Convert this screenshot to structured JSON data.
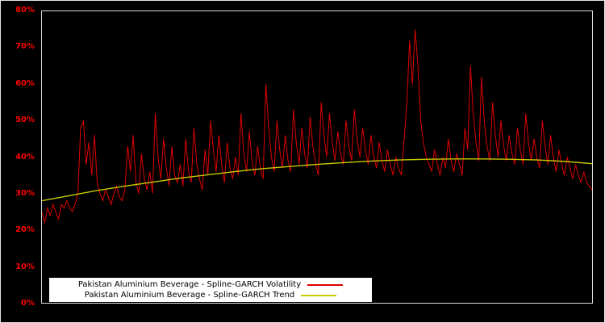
{
  "chart_data": {
    "type": "line",
    "title": "",
    "xlabel": "",
    "ylabel": "",
    "ylim": [
      0,
      80
    ],
    "grid": false,
    "background_color": "#000000",
    "axis_frame_color": "#d9d9d9",
    "tick_label_color": "#ff0000",
    "legend_position": "bottom-inside",
    "legend_background": "#ffffff",
    "yticks": [
      "0%",
      "10%",
      "20%",
      "30%",
      "40%",
      "50%",
      "60%",
      "70%",
      "80%"
    ],
    "series": [
      {
        "name": "volatility",
        "label": "Pakistan Aluminium Beverage - Spline-GARCH Volatility",
        "color": "#dd0000",
        "unit": "%",
        "values": [
          25,
          22,
          26,
          24,
          27,
          25,
          23,
          27,
          26,
          28,
          26,
          25,
          27,
          30,
          48,
          50,
          38,
          44,
          35,
          46,
          33,
          30,
          28,
          31,
          29,
          27,
          30,
          32,
          29,
          28,
          31,
          43,
          36,
          46,
          33,
          30,
          41,
          34,
          31,
          36,
          30,
          52,
          40,
          34,
          45,
          37,
          32,
          43,
          35,
          33,
          38,
          32,
          45,
          36,
          33,
          48,
          38,
          34,
          31,
          42,
          35,
          50,
          42,
          36,
          46,
          38,
          33,
          44,
          37,
          34,
          40,
          35,
          52,
          41,
          36,
          47,
          39,
          35,
          43,
          37,
          34,
          60,
          48,
          40,
          36,
          50,
          42,
          37,
          46,
          39,
          36,
          53,
          44,
          38,
          48,
          41,
          37,
          51,
          43,
          38,
          35,
          55,
          46,
          40,
          52,
          44,
          39,
          47,
          41,
          38,
          50,
          43,
          39,
          53,
          45,
          40,
          48,
          42,
          38,
          46,
          40,
          37,
          44,
          39,
          36,
          42,
          38,
          35,
          40,
          37,
          35,
          45,
          55,
          72,
          60,
          75,
          65,
          50,
          44,
          40,
          38,
          36,
          42,
          38,
          35,
          40,
          37,
          45,
          39,
          36,
          41,
          38,
          35,
          48,
          42,
          65,
          52,
          44,
          39,
          62,
          50,
          43,
          39,
          55,
          46,
          40,
          50,
          43,
          39,
          46,
          41,
          38,
          48,
          42,
          38,
          52,
          44,
          39,
          45,
          40,
          37,
          50,
          43,
          38,
          46,
          40,
          36,
          42,
          38,
          35,
          40,
          37,
          34,
          38,
          35,
          33,
          36,
          33,
          32,
          31
        ]
      },
      {
        "name": "trend",
        "label": "Pakistan Aluminium Beverage - Spline-GARCH Trend",
        "color": "#c9c900",
        "unit": "%",
        "points": [
          [
            0.0,
            28.0
          ],
          [
            0.05,
            29.4
          ],
          [
            0.1,
            30.8
          ],
          [
            0.15,
            32.0
          ],
          [
            0.2,
            33.1
          ],
          [
            0.25,
            34.2
          ],
          [
            0.3,
            35.1
          ],
          [
            0.35,
            36.0
          ],
          [
            0.4,
            36.8
          ],
          [
            0.45,
            37.4
          ],
          [
            0.5,
            38.0
          ],
          [
            0.55,
            38.5
          ],
          [
            0.6,
            38.9
          ],
          [
            0.65,
            39.2
          ],
          [
            0.7,
            39.4
          ],
          [
            0.75,
            39.5
          ],
          [
            0.8,
            39.5
          ],
          [
            0.85,
            39.4
          ],
          [
            0.9,
            39.2
          ],
          [
            0.95,
            38.8
          ],
          [
            1.0,
            38.2
          ]
        ]
      }
    ]
  }
}
